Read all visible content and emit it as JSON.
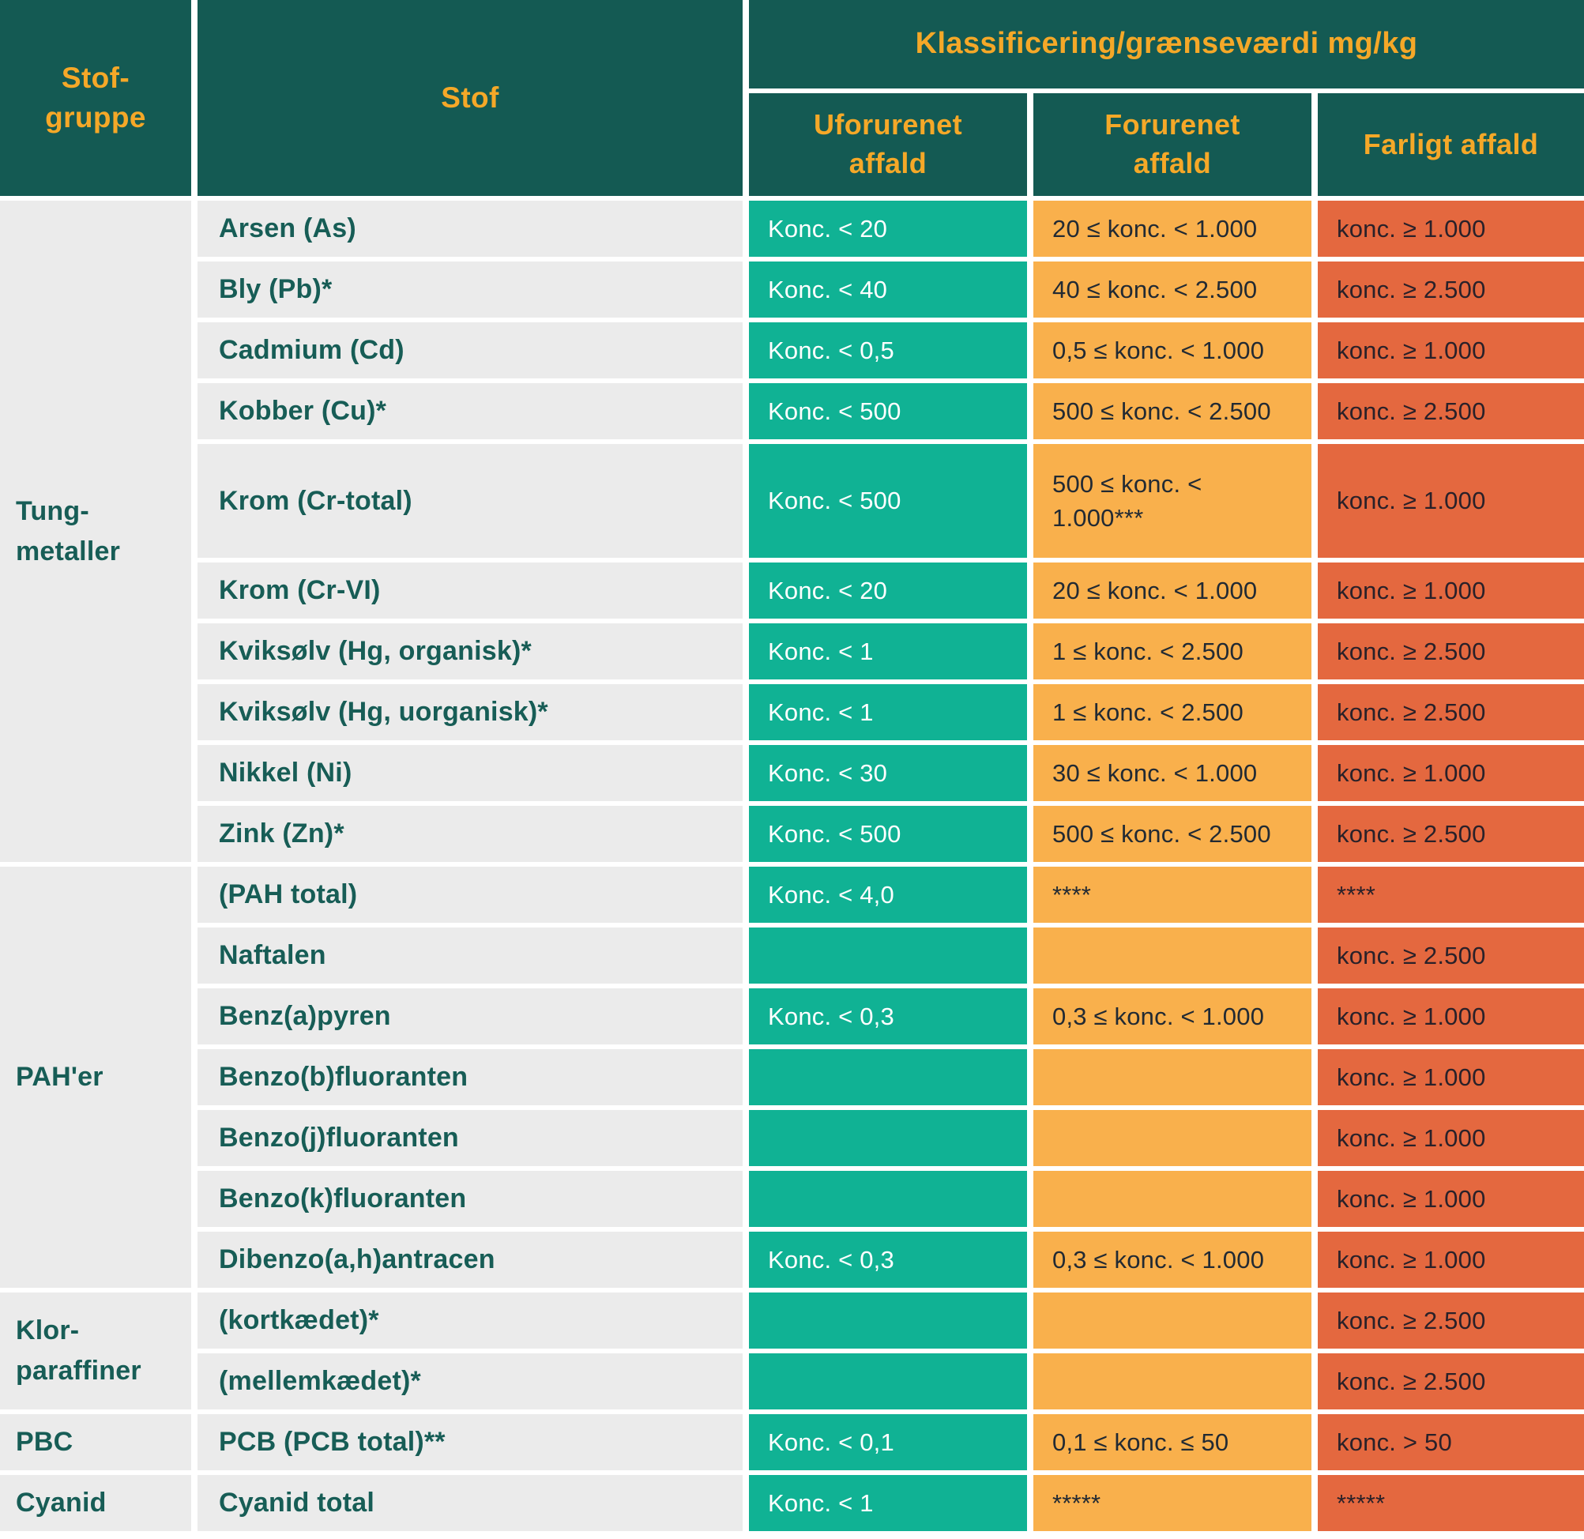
{
  "header": {
    "col_group": "Stof-\ngruppe",
    "col_stof": "Stof",
    "col_class": "Klassificering/grænseværdi mg/kg",
    "col_clean": "Uforurenet\naffald",
    "col_polluted": "Forurenet\naffald",
    "col_hazard": "Farligt affald"
  },
  "colors": {
    "header_bg": "#145A53",
    "header_text": "#F5A828",
    "row_bg": "#EBEBEB",
    "label_text": "#175D56",
    "clean_bg": "#10B294",
    "polluted_bg": "#F9B04C",
    "hazard_bg": "#E4683F"
  },
  "groups": [
    {
      "name": "Tung-\nmetaller",
      "rows": 10
    },
    {
      "name": "PAH'er",
      "rows": 7
    },
    {
      "name": "Klor-\nparaffiner",
      "rows": 2
    },
    {
      "name": "PBC",
      "rows": 1
    },
    {
      "name": "Cyanid",
      "rows": 1
    }
  ],
  "rows": [
    {
      "substance": "Arsen (As)",
      "clean": "Konc. < 20",
      "polluted": "20 ≤ konc. < 1.000",
      "hazard": "konc. ≥ 1.000"
    },
    {
      "substance": "Bly (Pb)*",
      "clean": "Konc. < 40",
      "polluted": "40 ≤ konc. < 2.500",
      "hazard": "konc. ≥ 2.500"
    },
    {
      "substance": "Cadmium (Cd)",
      "clean": "Konc. < 0,5",
      "polluted": "0,5 ≤ konc. < 1.000",
      "hazard": "konc. ≥ 1.000"
    },
    {
      "substance": "Kobber (Cu)*",
      "clean": "Konc. < 500",
      "polluted": "500 ≤ konc. < 2.500",
      "hazard": "konc. ≥ 2.500"
    },
    {
      "substance": "Krom (Cr-total)",
      "clean": "Konc. < 500",
      "polluted": "500 ≤ konc. < 1.000***",
      "hazard": "konc. ≥ 1.000"
    },
    {
      "substance": "Krom (Cr-VI)",
      "clean": "Konc. < 20",
      "polluted": "20 ≤ konc. < 1.000",
      "hazard": "konc. ≥ 1.000"
    },
    {
      "substance": "Kviksølv (Hg, organisk)*",
      "clean": "Konc. < 1",
      "polluted": "1 ≤ konc. < 2.500",
      "hazard": "konc. ≥ 2.500"
    },
    {
      "substance": "Kviksølv (Hg, uorganisk)*",
      "clean": "Konc. < 1",
      "polluted": "1 ≤ konc. < 2.500",
      "hazard": "konc. ≥ 2.500"
    },
    {
      "substance": "Nikkel (Ni)",
      "clean": "Konc. < 30",
      "polluted": "30 ≤ konc. < 1.000",
      "hazard": "konc. ≥ 1.000"
    },
    {
      "substance": "Zink (Zn)*",
      "clean": "Konc. < 500",
      "polluted": "500 ≤ konc. < 2.500",
      "hazard": "konc. ≥ 2.500"
    },
    {
      "substance": "(PAH total)",
      "clean": "Konc. < 4,0",
      "polluted": "****",
      "hazard": "****"
    },
    {
      "substance": "Naftalen",
      "clean": "",
      "polluted": "",
      "hazard": "konc. ≥ 2.500"
    },
    {
      "substance": "Benz(a)pyren",
      "clean": "Konc. < 0,3",
      "polluted": "0,3 ≤ konc. < 1.000",
      "hazard": "konc. ≥ 1.000"
    },
    {
      "substance": "Benzo(b)fluoranten",
      "clean": "",
      "polluted": "",
      "hazard": "konc. ≥ 1.000"
    },
    {
      "substance": "Benzo(j)fluoranten",
      "clean": "",
      "polluted": "",
      "hazard": "konc. ≥ 1.000"
    },
    {
      "substance": "Benzo(k)fluoranten",
      "clean": "",
      "polluted": "",
      "hazard": "konc. ≥ 1.000"
    },
    {
      "substance": "Dibenzo(a,h)antracen",
      "clean": "Konc. < 0,3",
      "polluted": "0,3 ≤ konc. < 1.000",
      "hazard": "konc. ≥ 1.000"
    },
    {
      "substance": "(kortkædet)*",
      "clean": "",
      "polluted": "",
      "hazard": "konc. ≥ 2.500"
    },
    {
      "substance": "(mellemkædet)*",
      "clean": "",
      "polluted": "",
      "hazard": "konc. ≥ 2.500"
    },
    {
      "substance": "PCB (PCB total)**",
      "clean": "Konc. < 0,1",
      "polluted": "0,1 ≤ konc. ≤ 50",
      "hazard": "konc. > 50"
    },
    {
      "substance": "Cyanid total",
      "clean": "Konc. < 1",
      "polluted": "*****",
      "hazard": "*****"
    }
  ]
}
